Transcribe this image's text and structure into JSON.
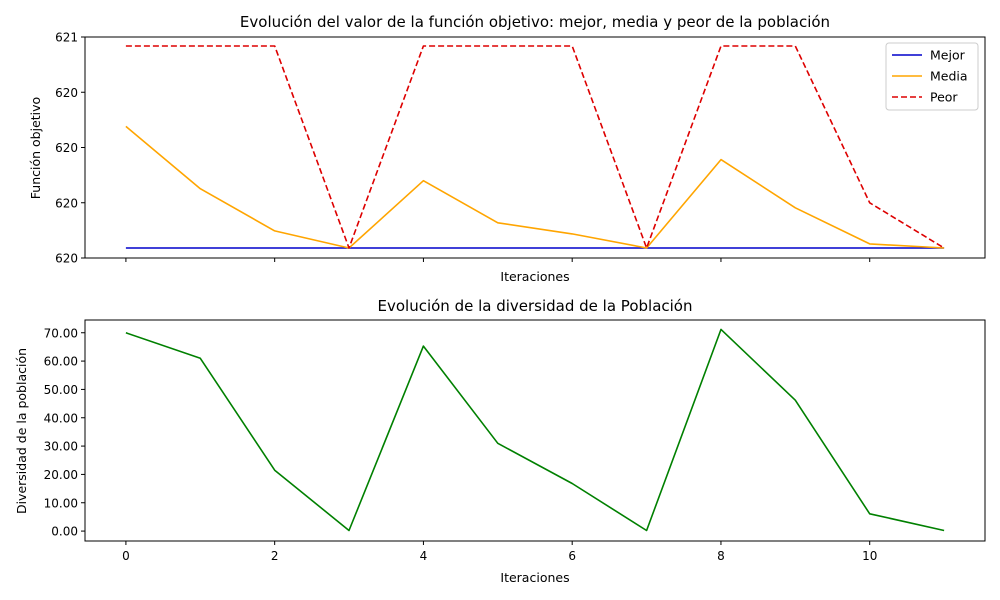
{
  "chart_data": [
    {
      "type": "line",
      "title": "Evolución del valor de la función objetivo: mejor, media y peor de la población",
      "xlabel": "Iteraciones",
      "ylabel": "Función objetivo",
      "x": [
        0,
        1,
        2,
        3,
        4,
        5,
        6,
        7,
        8,
        9,
        10,
        11
      ],
      "xlim": [
        -0.55,
        11.55
      ],
      "ylim": [
        619.9,
        621.0
      ],
      "yticks": [
        619.9,
        620.175,
        620.45,
        620.725,
        621.0
      ],
      "ytick_labels": [
        "620",
        "620",
        "620",
        "620",
        "621"
      ],
      "xtick_labels_visible": false,
      "legend": "top-right",
      "series": [
        {
          "name": "Mejor",
          "color": "#0000cc",
          "style": "solid",
          "values": [
            619.95,
            619.95,
            619.95,
            619.95,
            619.95,
            619.95,
            619.95,
            619.95,
            619.95,
            619.95,
            619.95,
            619.95
          ]
        },
        {
          "name": "Media",
          "color": "#ffa500",
          "style": "solid",
          "values": [
            620.555,
            620.245,
            620.035,
            619.95,
            620.285,
            620.075,
            620.02,
            619.95,
            620.39,
            620.15,
            619.97,
            619.95
          ]
        },
        {
          "name": "Peor",
          "color": "#dd0000",
          "style": "dashed",
          "values": [
            620.955,
            620.955,
            620.955,
            619.95,
            620.955,
            620.955,
            620.955,
            619.95,
            620.955,
            620.955,
            620.175,
            619.95
          ]
        }
      ]
    },
    {
      "type": "line",
      "title": "Evolución de la diversidad de la Población",
      "xlabel": "Iteraciones",
      "ylabel": "Diversidad de la población",
      "x": [
        0,
        1,
        2,
        3,
        4,
        5,
        6,
        7,
        8,
        9,
        10,
        11
      ],
      "xlim": [
        -0.55,
        11.55
      ],
      "ylim": [
        -3.5,
        74.5
      ],
      "xticks": [
        0,
        2,
        4,
        6,
        8,
        10
      ],
      "xtick_labels": [
        "0",
        "2",
        "4",
        "6",
        "8",
        "10"
      ],
      "yticks": [
        0,
        10,
        20,
        30,
        40,
        50,
        60,
        70
      ],
      "ytick_labels": [
        "0.00",
        "10.00",
        "20.00",
        "30.00",
        "40.00",
        "50.00",
        "60.00",
        "70.00"
      ],
      "series": [
        {
          "color": "#008000",
          "style": "solid",
          "values": [
            70.0,
            61.0,
            21.5,
            0.2,
            65.3,
            31.0,
            16.8,
            0.2,
            71.2,
            46.2,
            6.1,
            0.2
          ]
        }
      ]
    }
  ]
}
